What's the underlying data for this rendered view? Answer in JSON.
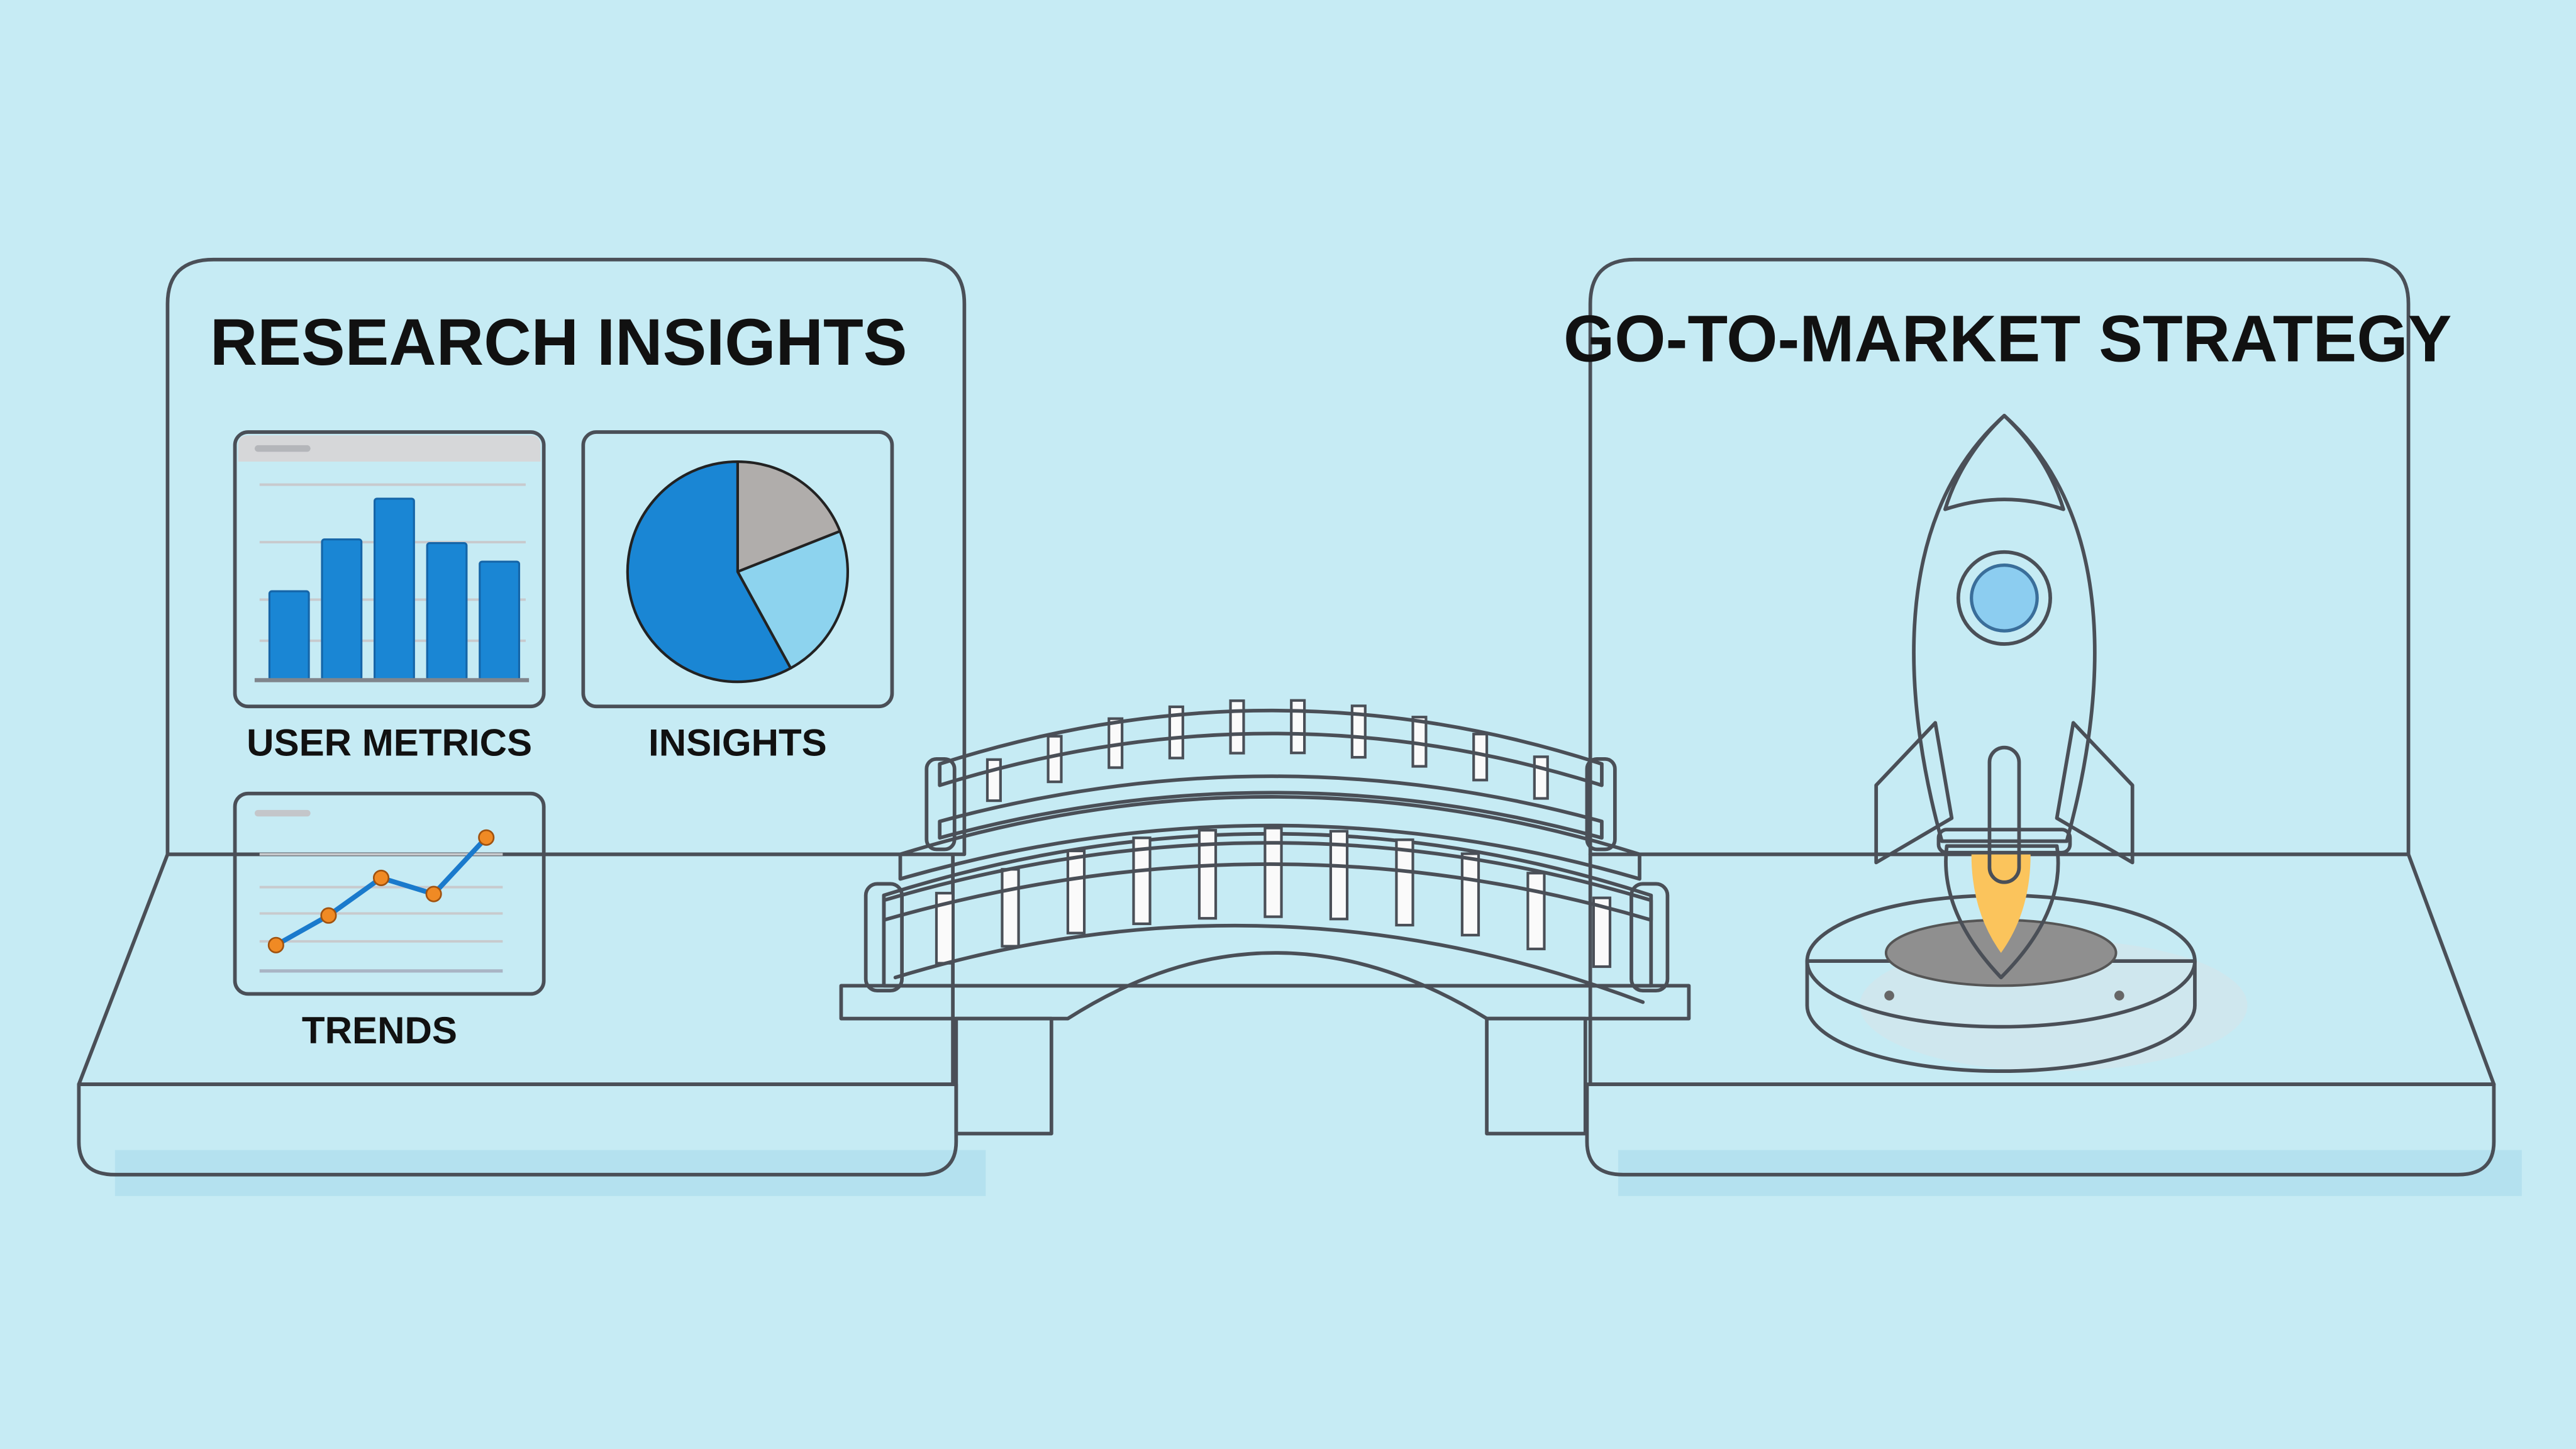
{
  "colors": {
    "background": "#c6ebf4",
    "panel": "#f5f3ef",
    "chart_blue": "#1a86d4",
    "chart_light_blue": "#8dd3ee",
    "chart_grey": "#b0adab",
    "trend_point": "#f08a24",
    "rocket_nose": "#e83a3a",
    "rocket_fin": "#1a7acc",
    "flame": "#f58220"
  },
  "left_panel": {
    "title": "RESEARCH INSIGHTS",
    "cards": [
      {
        "label": "USER METRICS",
        "icon": "bar-chart"
      },
      {
        "label": "INSIGHTS",
        "icon": "pie-chart"
      },
      {
        "label": "TRENDS",
        "icon": "line-chart"
      }
    ]
  },
  "right_panel": {
    "title": "GO-TO-MARKET STRATEGY",
    "icon": "rocket-on-launch-pad"
  },
  "connector": {
    "icon": "bridge"
  },
  "chart_data": [
    {
      "type": "bar",
      "values": [
        2.4,
        3.8,
        4.9,
        3.7,
        3.2
      ],
      "ylim": [
        0,
        5.5
      ],
      "grid": true,
      "color": "#1a86d4"
    },
    {
      "type": "pie",
      "values": [
        19,
        23,
        58
      ],
      "colors": [
        "#b0adab",
        "#8dd3ee",
        "#1a86d4"
      ]
    },
    {
      "type": "line",
      "values": [
        0.9,
        2.0,
        3.4,
        2.8,
        4.9
      ],
      "ylim": [
        0,
        5.5
      ],
      "grid": true,
      "line_color": "#1a7acc",
      "point_color": "#f08a24"
    }
  ]
}
